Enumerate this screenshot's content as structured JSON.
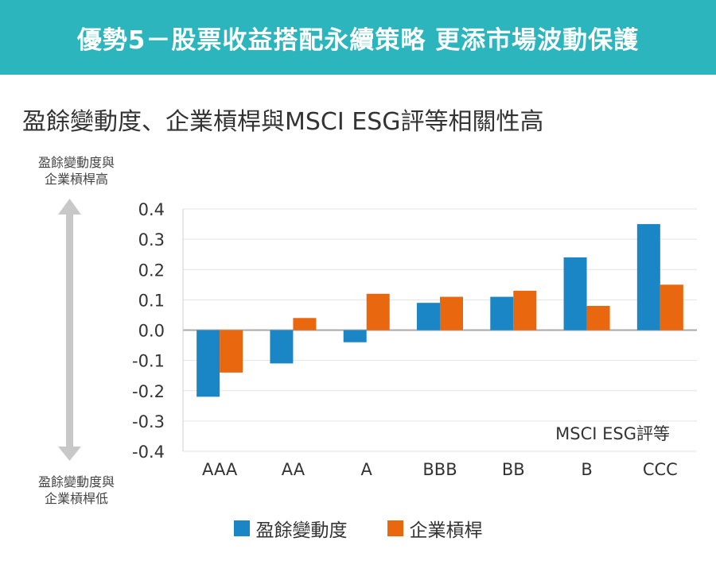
{
  "banner": {
    "title": "優勢5－股票收益搭配永續策略 更添市場波動保護"
  },
  "subtitle": "盈餘變動度、企業槓桿與MSCI ESG評等相關性高",
  "notes": {
    "high": [
      "盈餘變動度與",
      "企業槓桿高"
    ],
    "low": [
      "盈餘變動度與",
      "企業槓桿低"
    ]
  },
  "colors": {
    "banner": "#2cb5bd",
    "series1": "#1a86c5",
    "series2": "#e8670f",
    "arrow": "#c8c8c8",
    "grid": "#e3e3e3"
  },
  "chart_data": {
    "type": "bar",
    "categories": [
      "AAA",
      "AA",
      "A",
      "BBB",
      "BB",
      "B",
      "CCC"
    ],
    "series": [
      {
        "name": "盈餘變動度",
        "values": [
          -0.22,
          -0.11,
          -0.04,
          0.09,
          0.11,
          0.24,
          0.35
        ]
      },
      {
        "name": "企業槓桿",
        "values": [
          -0.14,
          0.04,
          0.12,
          0.11,
          0.13,
          0.08,
          0.15
        ]
      }
    ],
    "ylim": [
      -0.4,
      0.4
    ],
    "yticks": [
      "0.4",
      "0.3",
      "0.2",
      "0.1",
      "0.0",
      "-0.1",
      "-0.2",
      "-0.3",
      "-0.4"
    ],
    "xlabel": "MSCI ESG評等",
    "grid": true,
    "legend": "bottom-center"
  }
}
